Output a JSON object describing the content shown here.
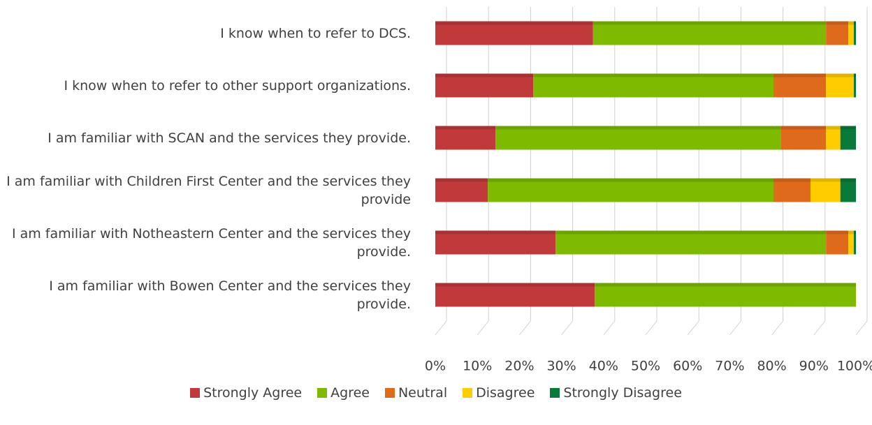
{
  "chart_data": {
    "type": "bar",
    "orientation": "horizontal",
    "stacked": true,
    "categories": [
      "I know when to refer to DCS.",
      "I know when to refer to other support organizations.",
      "I am familiar with SCAN and the services they provide.",
      "I am familiar with Children First Center and the services they provide",
      "I am familiar with Notheastern Center and the services they provide.",
      "I am familiar with Bowen Center and the services they provide."
    ],
    "series": [
      {
        "name": "Strongly Agree",
        "color": "#c0393b",
        "values": [
          37.5,
          23.3,
          14.3,
          12.5,
          28.6,
          37.9
        ]
      },
      {
        "name": "Agree",
        "color": "#7dba00",
        "values": [
          55.4,
          57.1,
          67.8,
          67.9,
          64.3,
          62.1
        ]
      },
      {
        "name": "Neutral",
        "color": "#e06a1b",
        "values": [
          5.3,
          12.5,
          10.8,
          8.8,
          5.3,
          0
        ]
      },
      {
        "name": "Disagree",
        "color": "#ffcc00",
        "values": [
          1.3,
          6.6,
          3.4,
          7.1,
          1.3,
          0
        ]
      },
      {
        "name": "Strongly Disagree",
        "color": "#0a7a3a",
        "values": [
          0.5,
          0.5,
          3.7,
          3.7,
          0.5,
          0
        ]
      }
    ],
    "xlim": [
      0,
      100
    ],
    "xticks": [
      {
        "value": 0,
        "label": "0%"
      },
      {
        "value": 10,
        "label": "10%"
      },
      {
        "value": 20,
        "label": "20%"
      },
      {
        "value": 30,
        "label": "30%"
      },
      {
        "value": 40,
        "label": "40%"
      },
      {
        "value": 50,
        "label": "50%"
      },
      {
        "value": 60,
        "label": "60%"
      },
      {
        "value": 70,
        "label": "70%"
      },
      {
        "value": 80,
        "label": "80%"
      },
      {
        "value": 90,
        "label": "90%"
      },
      {
        "value": 100,
        "label": "100%"
      }
    ],
    "grid": true,
    "legend": "bottom"
  }
}
